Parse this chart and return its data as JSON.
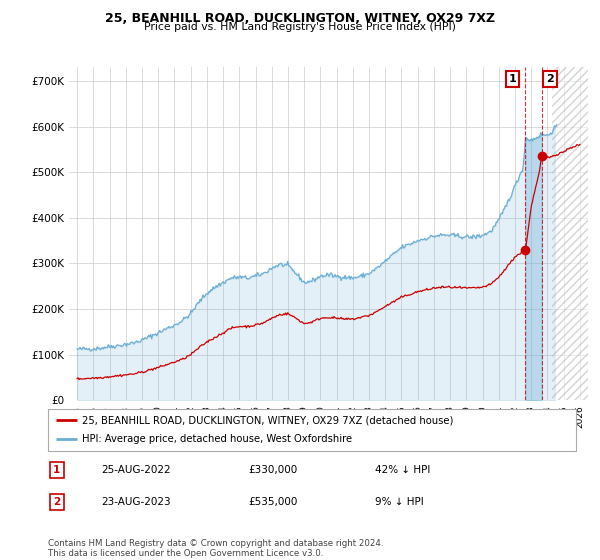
{
  "title": "25, BEANHILL ROAD, DUCKLINGTON, WITNEY, OX29 7XZ",
  "subtitle": "Price paid vs. HM Land Registry's House Price Index (HPI)",
  "legend_line1": "25, BEANHILL ROAD, DUCKLINGTON, WITNEY, OX29 7XZ (detached house)",
  "legend_line2": "HPI: Average price, detached house, West Oxfordshire",
  "transaction1_label": "1",
  "transaction1_date": "25-AUG-2022",
  "transaction1_price": "£330,000",
  "transaction1_hpi": "42% ↓ HPI",
  "transaction2_label": "2",
  "transaction2_date": "23-AUG-2023",
  "transaction2_price": "£535,000",
  "transaction2_hpi": "9% ↓ HPI",
  "footer": "Contains HM Land Registry data © Crown copyright and database right 2024.\nThis data is licensed under the Open Government Licence v3.0.",
  "hpi_color": "#6aaed6",
  "price_color": "#cc0000",
  "background_color": "#ffffff",
  "grid_color": "#cccccc",
  "ylim": [
    0,
    730000
  ],
  "yticks": [
    0,
    100000,
    200000,
    300000,
    400000,
    500000,
    600000,
    700000
  ],
  "ytick_labels": [
    "£0",
    "£100K",
    "£200K",
    "£300K",
    "£400K",
    "£500K",
    "£600K",
    "£700K"
  ],
  "t1_year": 2022.644,
  "t2_year": 2023.644,
  "t1_price": 330000,
  "t2_price": 535000,
  "xmin": 1994.5,
  "xmax": 2026.5,
  "future_start": 2024.3
}
